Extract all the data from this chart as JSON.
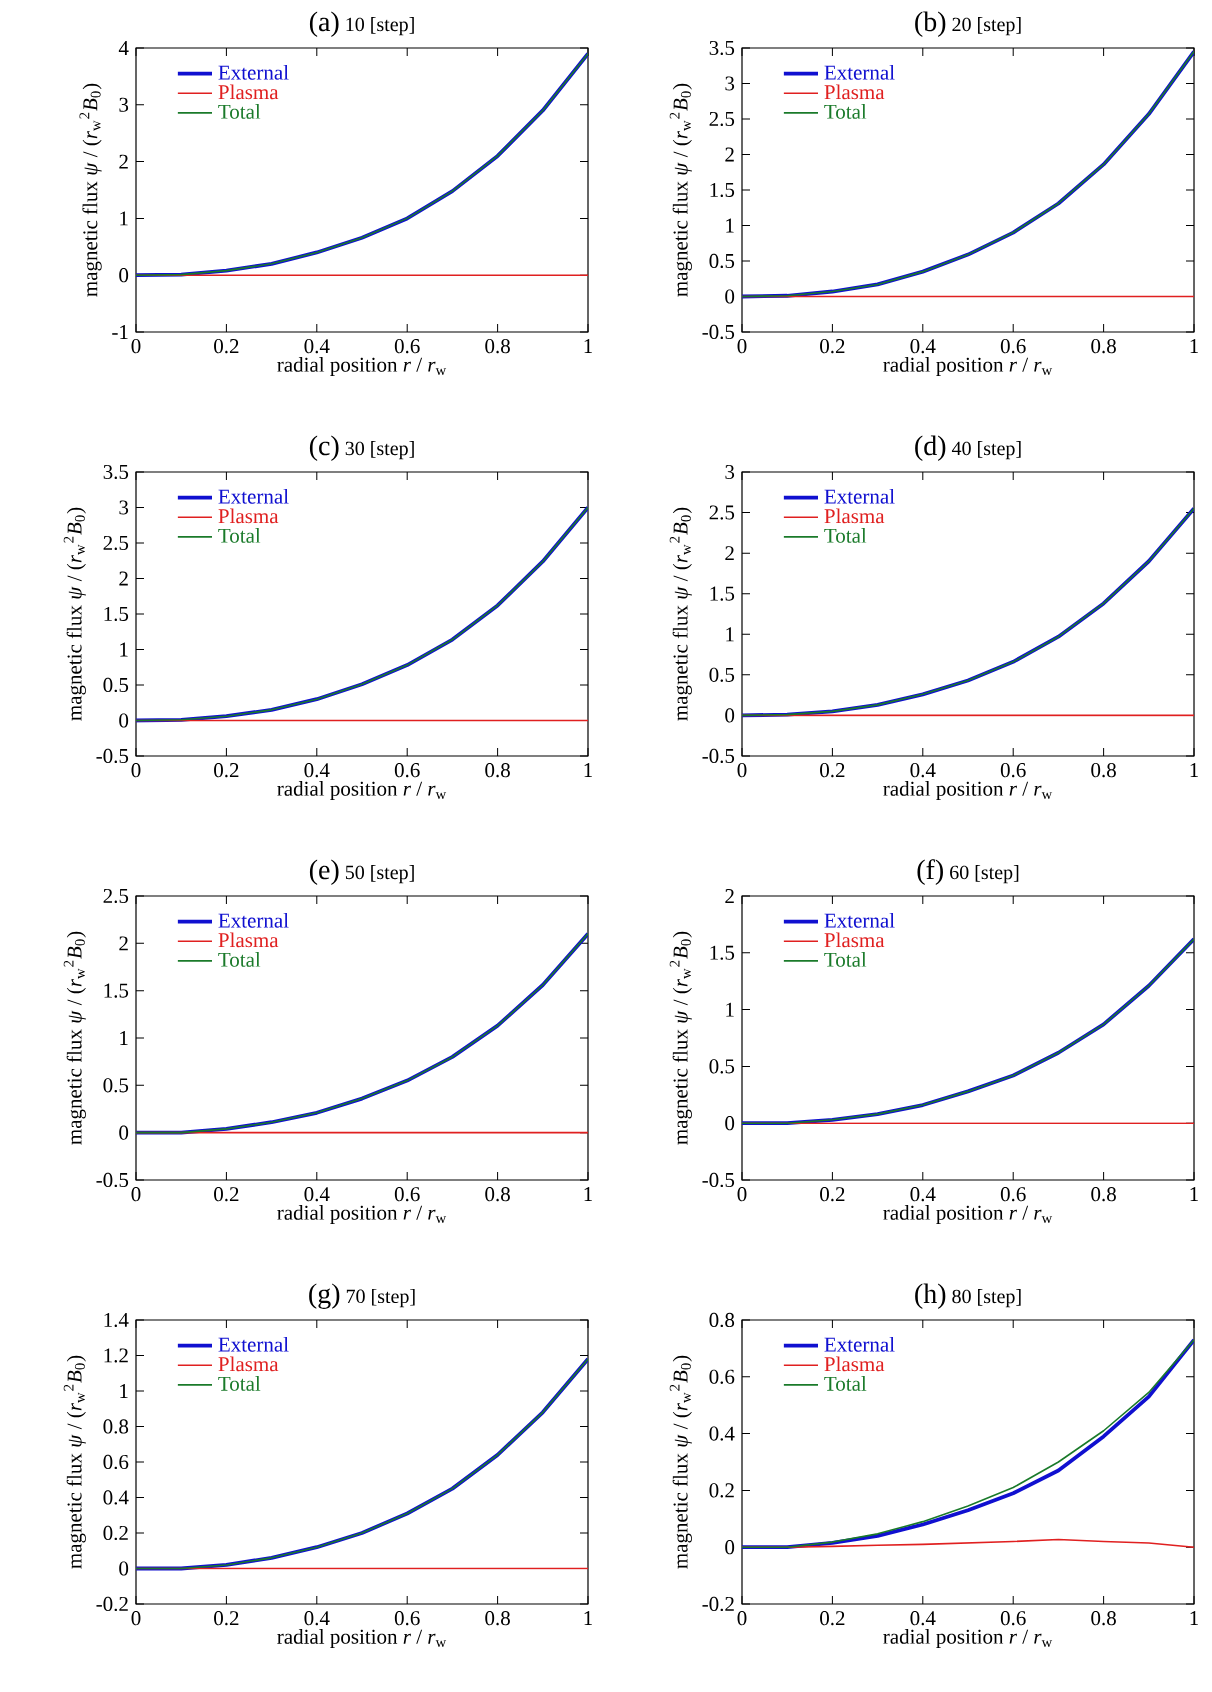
{
  "chart_data": [
    {
      "type": "line",
      "title": "(a)",
      "subtitle": "10 [step]",
      "xlabel": "radial position   *r* / *r*$_{w}$",
      "ylabel": "magnetic flux   *ψ* / (*r*$_{w}$$^{2}$*B*$_{0}$)",
      "x": [
        0,
        0.1,
        0.2,
        0.3,
        0.4,
        0.5,
        0.6,
        0.7,
        0.8,
        0.9,
        1
      ],
      "xlim": [
        0,
        1
      ],
      "xticks": [
        0,
        0.2,
        0.4,
        0.6,
        0.8,
        1
      ],
      "ylim": [
        -1,
        4
      ],
      "yticks": [
        -1,
        0,
        1,
        2,
        3,
        4
      ],
      "legend": "top left",
      "series": [
        {
          "name": "External",
          "color": "#1010d0",
          "values": [
            0,
            0.01,
            0.08,
            0.2,
            0.4,
            0.66,
            1.0,
            1.48,
            2.1,
            2.9,
            3.9
          ]
        },
        {
          "name": "Plasma",
          "color": "#e02020",
          "values": [
            0,
            0,
            0,
            0,
            0,
            0,
            0,
            0,
            0,
            0,
            0
          ]
        },
        {
          "name": "Total",
          "color": "#1a7a2a",
          "values": [
            0,
            0.01,
            0.08,
            0.2,
            0.4,
            0.66,
            1.0,
            1.48,
            2.1,
            2.9,
            3.9
          ]
        }
      ]
    },
    {
      "type": "line",
      "title": "(b)",
      "subtitle": "20 [step]",
      "xlabel": "radial position   *r* / *r*$_{w}$",
      "ylabel": "magnetic flux   *ψ* / (*r*$_{w}$$^{2}$*B*$_{0}$)",
      "x": [
        0,
        0.1,
        0.2,
        0.3,
        0.4,
        0.5,
        0.6,
        0.7,
        0.8,
        0.9,
        1
      ],
      "xlim": [
        0,
        1
      ],
      "xticks": [
        0,
        0.2,
        0.4,
        0.6,
        0.8,
        1
      ],
      "ylim": [
        -0.5,
        3.5
      ],
      "yticks": [
        -0.5,
        0,
        0.5,
        1,
        1.5,
        2,
        2.5,
        3,
        3.5
      ],
      "legend": "top left",
      "series": [
        {
          "name": "External",
          "color": "#1010d0",
          "values": [
            0,
            0.01,
            0.07,
            0.17,
            0.35,
            0.59,
            0.9,
            1.31,
            1.86,
            2.57,
            3.45
          ]
        },
        {
          "name": "Plasma",
          "color": "#e02020",
          "values": [
            0,
            0,
            0,
            0,
            0,
            0,
            0,
            0,
            0,
            0,
            0
          ]
        },
        {
          "name": "Total",
          "color": "#1a7a2a",
          "values": [
            0,
            0.01,
            0.07,
            0.17,
            0.35,
            0.59,
            0.9,
            1.31,
            1.86,
            2.57,
            3.45
          ]
        }
      ]
    },
    {
      "type": "line",
      "title": "(c)",
      "subtitle": "30 [step]",
      "xlabel": "radial position   *r* / *r*$_{w}$",
      "ylabel": "magnetic flux   *ψ* / (*r*$_{w}$$^{2}$*B*$_{0}$)",
      "x": [
        0,
        0.1,
        0.2,
        0.3,
        0.4,
        0.5,
        0.6,
        0.7,
        0.8,
        0.9,
        1
      ],
      "xlim": [
        0,
        1
      ],
      "xticks": [
        0,
        0.2,
        0.4,
        0.6,
        0.8,
        1
      ],
      "ylim": [
        -0.5,
        3.5
      ],
      "yticks": [
        -0.5,
        0,
        0.5,
        1,
        1.5,
        2,
        2.5,
        3,
        3.5
      ],
      "legend": "top left",
      "series": [
        {
          "name": "External",
          "color": "#1010d0",
          "values": [
            0,
            0.01,
            0.06,
            0.15,
            0.3,
            0.51,
            0.78,
            1.14,
            1.62,
            2.24,
            3.0
          ]
        },
        {
          "name": "Plasma",
          "color": "#e02020",
          "values": [
            0,
            0,
            0,
            0,
            0,
            0,
            0,
            0,
            0,
            0,
            0
          ]
        },
        {
          "name": "Total",
          "color": "#1a7a2a",
          "values": [
            0,
            0.01,
            0.06,
            0.15,
            0.3,
            0.51,
            0.78,
            1.14,
            1.62,
            2.24,
            3.0
          ]
        }
      ]
    },
    {
      "type": "line",
      "title": "(d)",
      "subtitle": "40 [step]",
      "xlabel": "radial position   *r* / *r*$_{w}$",
      "ylabel": "magnetic flux   *ψ* / (*r*$_{w}$$^{2}$*B*$_{0}$)",
      "x": [
        0,
        0.1,
        0.2,
        0.3,
        0.4,
        0.5,
        0.6,
        0.7,
        0.8,
        0.9,
        1
      ],
      "xlim": [
        0,
        1
      ],
      "xticks": [
        0,
        0.2,
        0.4,
        0.6,
        0.8,
        1
      ],
      "ylim": [
        -0.5,
        3
      ],
      "yticks": [
        -0.5,
        0,
        0.5,
        1,
        1.5,
        2,
        2.5,
        3
      ],
      "legend": "top left",
      "series": [
        {
          "name": "External",
          "color": "#1010d0",
          "values": [
            0,
            0.01,
            0.05,
            0.13,
            0.26,
            0.43,
            0.66,
            0.97,
            1.38,
            1.9,
            2.55
          ]
        },
        {
          "name": "Plasma",
          "color": "#e02020",
          "values": [
            0,
            0,
            0,
            0,
            0,
            0,
            0,
            0,
            0,
            0,
            0
          ]
        },
        {
          "name": "Total",
          "color": "#1a7a2a",
          "values": [
            0,
            0.01,
            0.05,
            0.13,
            0.26,
            0.43,
            0.66,
            0.97,
            1.38,
            1.9,
            2.55
          ]
        }
      ]
    },
    {
      "type": "line",
      "title": "(e)",
      "subtitle": "50 [step]",
      "xlabel": "radial position   *r* / *r*$_{w}$",
      "ylabel": "magnetic flux   *ψ* / (*r*$_{w}$$^{2}$*B*$_{0}$)",
      "x": [
        0,
        0.1,
        0.2,
        0.3,
        0.4,
        0.5,
        0.6,
        0.7,
        0.8,
        0.9,
        1
      ],
      "xlim": [
        0,
        1
      ],
      "xticks": [
        0,
        0.2,
        0.4,
        0.6,
        0.8,
        1
      ],
      "ylim": [
        -0.5,
        2.5
      ],
      "yticks": [
        -0.5,
        0,
        0.5,
        1,
        1.5,
        2,
        2.5
      ],
      "legend": "top left",
      "series": [
        {
          "name": "External",
          "color": "#1010d0",
          "values": [
            0,
            0,
            0.04,
            0.11,
            0.21,
            0.36,
            0.55,
            0.8,
            1.13,
            1.56,
            2.1
          ]
        },
        {
          "name": "Plasma",
          "color": "#e02020",
          "values": [
            0,
            0,
            0,
            0,
            0,
            0,
            0,
            0,
            0,
            0,
            0
          ]
        },
        {
          "name": "Total",
          "color": "#1a7a2a",
          "values": [
            0,
            0,
            0.04,
            0.11,
            0.21,
            0.36,
            0.55,
            0.8,
            1.13,
            1.56,
            2.1
          ]
        }
      ]
    },
    {
      "type": "line",
      "title": "(f)",
      "subtitle": "60 [step]",
      "xlabel": "radial position   *r* / *r*$_{w}$",
      "ylabel": "magnetic flux   *ψ* / (*r*$_{w}$$^{2}$*B*$_{0}$)",
      "x": [
        0,
        0.1,
        0.2,
        0.3,
        0.4,
        0.5,
        0.6,
        0.7,
        0.8,
        0.9,
        1
      ],
      "xlim": [
        0,
        1
      ],
      "xticks": [
        0,
        0.2,
        0.4,
        0.6,
        0.8,
        1
      ],
      "ylim": [
        -0.5,
        2
      ],
      "yticks": [
        -0.5,
        0,
        0.5,
        1,
        1.5,
        2
      ],
      "legend": "top left",
      "series": [
        {
          "name": "External",
          "color": "#1010d0",
          "values": [
            0,
            0,
            0.03,
            0.08,
            0.16,
            0.28,
            0.42,
            0.62,
            0.87,
            1.21,
            1.62
          ]
        },
        {
          "name": "Plasma",
          "color": "#e02020",
          "values": [
            0,
            0,
            0,
            0,
            0,
            0,
            0,
            0,
            0,
            0,
            0
          ]
        },
        {
          "name": "Total",
          "color": "#1a7a2a",
          "values": [
            0,
            0,
            0.03,
            0.08,
            0.16,
            0.28,
            0.42,
            0.62,
            0.87,
            1.21,
            1.62
          ]
        }
      ]
    },
    {
      "type": "line",
      "title": "(g)",
      "subtitle": "70 [step]",
      "xlabel": "radial position   *r* / *r*$_{w}$",
      "ylabel": "magnetic flux   *ψ* / (*r*$_{w}$$^{2}$*B*$_{0}$)",
      "x": [
        0,
        0.1,
        0.2,
        0.3,
        0.4,
        0.5,
        0.6,
        0.7,
        0.8,
        0.9,
        1
      ],
      "xlim": [
        0,
        1
      ],
      "xticks": [
        0,
        0.2,
        0.4,
        0.6,
        0.8,
        1
      ],
      "ylim": [
        -0.2,
        1.4
      ],
      "yticks": [
        -0.2,
        0,
        0.2,
        0.4,
        0.6,
        0.8,
        1,
        1.2,
        1.4
      ],
      "legend": "top left",
      "series": [
        {
          "name": "External",
          "color": "#1010d0",
          "values": [
            0,
            0,
            0.02,
            0.06,
            0.12,
            0.2,
            0.31,
            0.45,
            0.64,
            0.88,
            1.18
          ]
        },
        {
          "name": "Plasma",
          "color": "#e02020",
          "values": [
            0,
            0,
            0,
            0,
            0,
            0,
            0,
            0,
            0,
            0,
            0
          ]
        },
        {
          "name": "Total",
          "color": "#1a7a2a",
          "values": [
            0,
            0,
            0.02,
            0.06,
            0.12,
            0.2,
            0.31,
            0.45,
            0.64,
            0.88,
            1.18
          ]
        }
      ]
    },
    {
      "type": "line",
      "title": "(h)",
      "subtitle": "80 [step]",
      "xlabel": "radial position   *r* / *r*$_{w}$",
      "ylabel": "magnetic flux   *ψ* / (*r*$_{w}$$^{2}$*B*$_{0}$)",
      "x": [
        0,
        0.1,
        0.2,
        0.3,
        0.4,
        0.5,
        0.6,
        0.7,
        0.8,
        0.9,
        1
      ],
      "xlim": [
        0,
        1
      ],
      "xticks": [
        0,
        0.2,
        0.4,
        0.6,
        0.8,
        1
      ],
      "ylim": [
        -0.2,
        0.8
      ],
      "yticks": [
        -0.2,
        0,
        0.2,
        0.4,
        0.6,
        0.8
      ],
      "legend": "top left",
      "series": [
        {
          "name": "External",
          "color": "#1010d0",
          "values": [
            0,
            0,
            0.015,
            0.04,
            0.08,
            0.13,
            0.19,
            0.27,
            0.39,
            0.53,
            0.73
          ]
        },
        {
          "name": "Plasma",
          "color": "#e02020",
          "values": [
            0,
            0,
            0.003,
            0.007,
            0.01,
            0.015,
            0.02,
            0.027,
            0.02,
            0.015,
            0
          ]
        },
        {
          "name": "Total",
          "color": "#1a7a2a",
          "values": [
            0,
            0,
            0.018,
            0.047,
            0.09,
            0.145,
            0.21,
            0.3,
            0.41,
            0.545,
            0.73
          ]
        }
      ]
    }
  ]
}
